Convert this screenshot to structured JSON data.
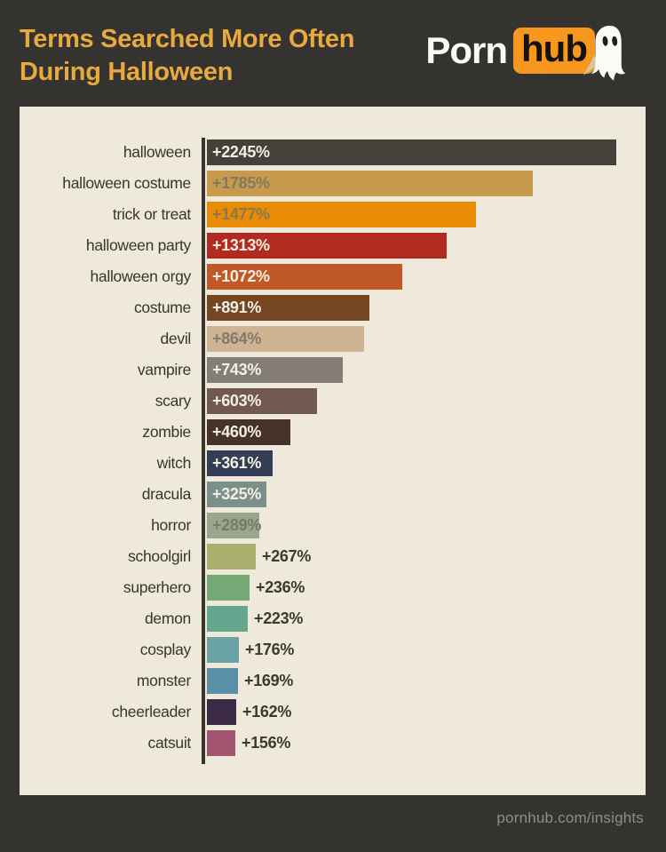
{
  "header": {
    "title_line1": "Terms Searched More Often",
    "title_line2": "During Halloween",
    "title_color": "#e8a93f",
    "logo": {
      "word1": "Porn",
      "word2": "hub",
      "box_color": "#f7971d",
      "ghost_icon": "ghost"
    }
  },
  "footer": {
    "url": "pornhub.com/insights"
  },
  "colors": {
    "background": "#2e2c29",
    "panel": "#eee9db",
    "axis": "#39342b",
    "term_label": "#3a352c"
  },
  "chart_data": {
    "type": "bar",
    "orientation": "horizontal",
    "title": "Terms Searched More Often During Halloween",
    "xlabel": "",
    "ylabel": "",
    "value_unit": "% increase",
    "xlim": [
      0,
      2245
    ],
    "grid": false,
    "legend": "none",
    "categories": [
      "halloween",
      "halloween costume",
      "trick or treat",
      "halloween party",
      "halloween orgy",
      "costume",
      "devil",
      "vampire",
      "scary",
      "zombie",
      "witch",
      "dracula",
      "horror",
      "schoolgirl",
      "superhero",
      "demon",
      "cosplay",
      "monster",
      "cheerleader",
      "catsuit"
    ],
    "values": [
      2245,
      1785,
      1477,
      1313,
      1072,
      891,
      864,
      743,
      603,
      460,
      361,
      325,
      289,
      267,
      236,
      223,
      176,
      169,
      162,
      156
    ],
    "bars": [
      {
        "term": "halloween",
        "value": 2245,
        "value_label": "+2245%",
        "bar_color": "#44403a",
        "value_color": "#f3efe2",
        "value_inside": true
      },
      {
        "term": "halloween costume",
        "value": 1785,
        "value_label": "+1785%",
        "bar_color": "#c89a4d",
        "value_color": "#82795f",
        "value_inside": true
      },
      {
        "term": "trick or treat",
        "value": 1477,
        "value_label": "+1477%",
        "bar_color": "#e98c05",
        "value_color": "#8a7850",
        "value_inside": true
      },
      {
        "term": "halloween party",
        "value": 1313,
        "value_label": "+1313%",
        "bar_color": "#b12b20",
        "value_color": "#f3efe2",
        "value_inside": true
      },
      {
        "term": "halloween orgy",
        "value": 1072,
        "value_label": "+1072%",
        "bar_color": "#c05828",
        "value_color": "#f3efe2",
        "value_inside": true
      },
      {
        "term": "costume",
        "value": 891,
        "value_label": "+891%",
        "bar_color": "#744624",
        "value_color": "#f3efe2",
        "value_inside": true
      },
      {
        "term": "devil",
        "value": 864,
        "value_label": "+864%",
        "bar_color": "#cfb494",
        "value_color": "#837a6c",
        "value_inside": true
      },
      {
        "term": "vampire",
        "value": 743,
        "value_label": "+743%",
        "bar_color": "#847d73",
        "value_color": "#f3efe2",
        "value_inside": true
      },
      {
        "term": "scary",
        "value": 603,
        "value_label": "+603%",
        "bar_color": "#72594f",
        "value_color": "#f3efe2",
        "value_inside": true
      },
      {
        "term": "zombie",
        "value": 460,
        "value_label": "+460%",
        "bar_color": "#47322b",
        "value_color": "#f3efe2",
        "value_inside": true
      },
      {
        "term": "witch",
        "value": 361,
        "value_label": "+361%",
        "bar_color": "#323e55",
        "value_color": "#f3efe2",
        "value_inside": true
      },
      {
        "term": "dracula",
        "value": 325,
        "value_label": "+325%",
        "bar_color": "#7b908a",
        "value_color": "#f3efe2",
        "value_inside": true
      },
      {
        "term": "horror",
        "value": 289,
        "value_label": "+289%",
        "bar_color": "#9aa78e",
        "value_color": "#717c64",
        "value_inside": true
      },
      {
        "term": "schoolgirl",
        "value": 267,
        "value_label": "+267%",
        "bar_color": "#a9b06e",
        "value_color": "#3e392f",
        "value_inside": false
      },
      {
        "term": "superhero",
        "value": 236,
        "value_label": "+236%",
        "bar_color": "#75a875",
        "value_color": "#3e392f",
        "value_inside": false
      },
      {
        "term": "demon",
        "value": 223,
        "value_label": "+223%",
        "bar_color": "#63a78e",
        "value_color": "#3e392f",
        "value_inside": false
      },
      {
        "term": "cosplay",
        "value": 176,
        "value_label": "+176%",
        "bar_color": "#6ba2a6",
        "value_color": "#3e392f",
        "value_inside": false
      },
      {
        "term": "monster",
        "value": 169,
        "value_label": "+169%",
        "bar_color": "#5890a8",
        "value_color": "#3e392f",
        "value_inside": false
      },
      {
        "term": "cheerleader",
        "value": 162,
        "value_label": "+162%",
        "bar_color": "#3c2a47",
        "value_color": "#3e392f",
        "value_inside": false
      },
      {
        "term": "catsuit",
        "value": 156,
        "value_label": "+156%",
        "bar_color": "#a05470",
        "value_color": "#3e392f",
        "value_inside": false
      }
    ]
  }
}
